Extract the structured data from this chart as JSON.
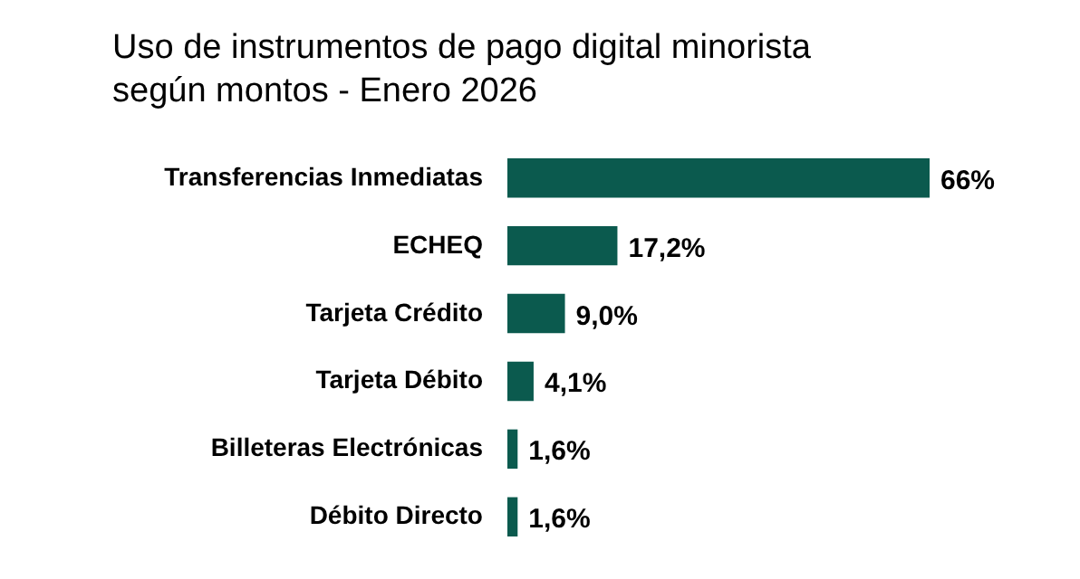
{
  "chart_data": {
    "type": "bar",
    "orientation": "horizontal",
    "title": "Uso de instrumentos de pago digital minorista\nsegún montos - Enero 2026",
    "categories": [
      "Transferencias Inmediatas",
      "ECHEQ",
      "Tarjeta Crédito",
      "Tarjeta Débito",
      "Billeteras Electrónicas",
      "Débito Directo"
    ],
    "values": [
      66,
      17.2,
      9.0,
      4.1,
      1.6,
      1.6
    ],
    "value_labels": [
      "66%",
      "17,2%",
      "9,0%",
      "4,1%",
      "1,6%",
      "1,6%"
    ],
    "color": "#0b5a4e",
    "tick_labels": "y"
  }
}
